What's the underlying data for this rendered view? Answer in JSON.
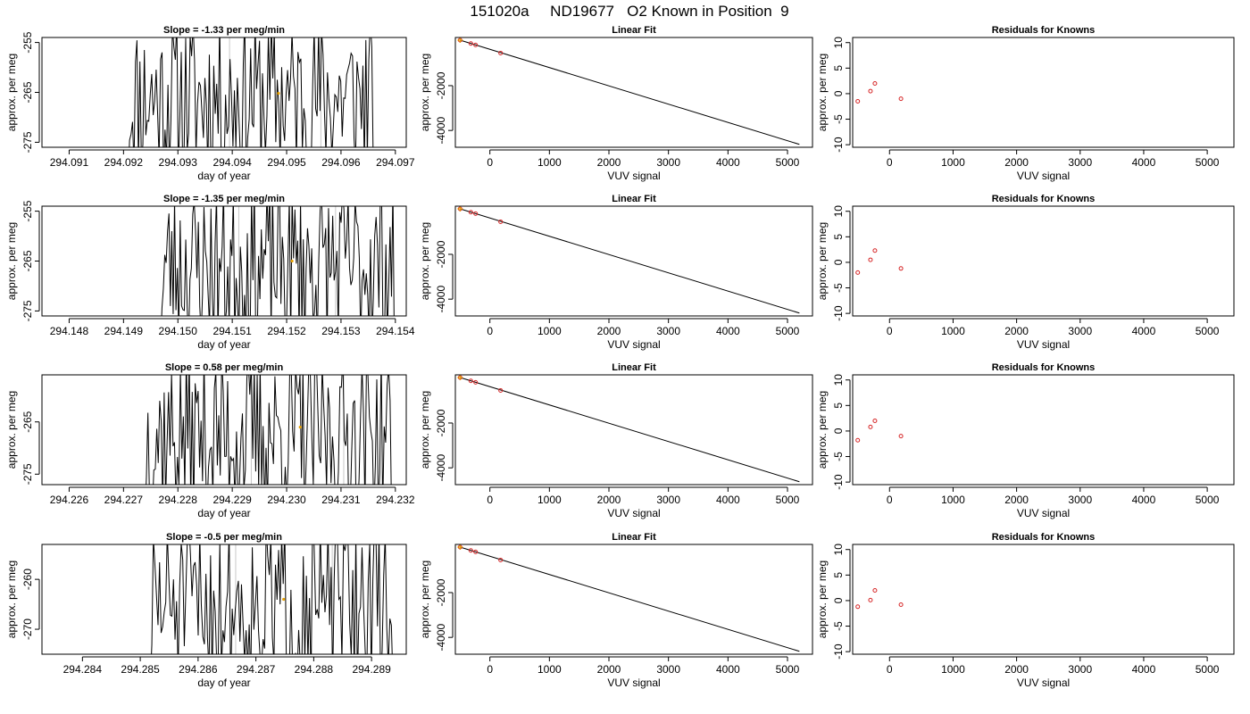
{
  "figure_title": "151020a     ND19677   O2 Known in Position  9",
  "chart_data": [
    {
      "panel": "timeseries",
      "row": 1,
      "type": "line",
      "title": "Slope =  -1.33  per meg/min",
      "xlabel": "day of year",
      "ylabel": "approx. per meg",
      "xlim": [
        294.0905,
        294.0972
      ],
      "ylim": [
        -276,
        -254
      ],
      "xticks": [
        "294.091",
        "294.092",
        "294.093",
        "294.094",
        "294.095",
        "294.096",
        "294.097"
      ],
      "xtick_values": [
        294.091,
        294.092,
        294.093,
        294.094,
        294.095,
        294.096,
        294.097
      ],
      "yticks": [
        "-255",
        "-265",
        "-275"
      ],
      "ytick_values": [
        -255,
        -265,
        -275
      ],
      "grid": false,
      "x_start": 294.09203,
      "x_end": 294.09662,
      "n_points": 170,
      "seed": 11,
      "vlines": [
        294.09395,
        294.09563
      ],
      "marker": {
        "x": 294.09485,
        "y": -265.2,
        "color": "#e69f00"
      }
    },
    {
      "panel": "fit",
      "row": 1,
      "type": "scatter",
      "title": "Linear Fit",
      "xlabel": "VUV signal",
      "ylabel": "approx. per meg",
      "xlim": [
        -580,
        5420
      ],
      "ylim": [
        -4750,
        150
      ],
      "xticks": [
        "0",
        "1000",
        "2000",
        "3000",
        "4000",
        "5000"
      ],
      "xtick_values": [
        0,
        1000,
        2000,
        3000,
        4000,
        5000
      ],
      "yticks": [
        "-2000",
        "-4000"
      ],
      "ytick_values": [
        -2000,
        -4000
      ],
      "grid": false,
      "fit_line": {
        "x": [
          -500,
          5200
        ],
        "y": [
          30,
          -4620
        ]
      },
      "points": {
        "x": [
          -500,
          -320,
          -240,
          180
        ],
        "y": [
          30,
          -120,
          -185,
          -545
        ]
      },
      "highlight": {
        "x": -500,
        "y": 30,
        "color": "#e69f00"
      },
      "point_color": "#d62728"
    },
    {
      "panel": "residuals",
      "row": 1,
      "type": "scatter",
      "title": "Residuals for Knowns",
      "xlabel": "VUV signal",
      "ylabel": "approx. per meg",
      "xlim": [
        -580,
        5420
      ],
      "ylim": [
        -10.5,
        11
      ],
      "xticks": [
        "0",
        "1000",
        "2000",
        "3000",
        "4000",
        "5000"
      ],
      "xtick_values": [
        0,
        1000,
        2000,
        3000,
        4000,
        5000
      ],
      "yticks": [
        "-10",
        "-5",
        "0",
        "5",
        "10"
      ],
      "ytick_values": [
        -10,
        -5,
        0,
        5,
        10
      ],
      "grid": false,
      "points": {
        "x": [
          -500,
          -300,
          -230,
          180
        ],
        "y": [
          -1.5,
          0.5,
          2.0,
          -1.0
        ]
      },
      "point_color": "#d62728"
    },
    {
      "panel": "timeseries",
      "row": 2,
      "type": "line",
      "title": "Slope =  -1.35  per meg/min",
      "xlabel": "day of year",
      "ylabel": "approx. per meg",
      "xlim": [
        294.1475,
        294.1542
      ],
      "ylim": [
        -276,
        -254
      ],
      "xticks": [
        "294.148",
        "294.149",
        "294.150",
        "294.151",
        "294.152",
        "294.153",
        "294.154"
      ],
      "xtick_values": [
        294.148,
        294.149,
        294.15,
        294.151,
        294.152,
        294.153,
        294.154
      ],
      "yticks": [
        "-255",
        "-265",
        "-275"
      ],
      "ytick_values": [
        -255,
        -265,
        -275
      ],
      "grid": false,
      "x_start": 294.14963,
      "x_end": 294.15398,
      "n_points": 170,
      "seed": 23,
      "vlines": [
        294.15112,
        294.1529
      ],
      "marker": {
        "x": 294.1521,
        "y": -265.0,
        "color": "#e69f00"
      }
    },
    {
      "panel": "fit",
      "row": 2,
      "type": "scatter",
      "title": "Linear Fit",
      "xlabel": "VUV signal",
      "ylabel": "approx. per meg",
      "xlim": [
        -580,
        5420
      ],
      "ylim": [
        -4750,
        150
      ],
      "xticks": [
        "0",
        "1000",
        "2000",
        "3000",
        "4000",
        "5000"
      ],
      "xtick_values": [
        0,
        1000,
        2000,
        3000,
        4000,
        5000
      ],
      "yticks": [
        "-2000",
        "-4000"
      ],
      "ytick_values": [
        -2000,
        -4000
      ],
      "grid": false,
      "fit_line": {
        "x": [
          -500,
          5200
        ],
        "y": [
          30,
          -4620
        ]
      },
      "points": {
        "x": [
          -500,
          -320,
          -240,
          180
        ],
        "y": [
          30,
          -120,
          -185,
          -545
        ]
      },
      "highlight": {
        "x": -500,
        "y": 30,
        "color": "#e69f00"
      },
      "point_color": "#d62728"
    },
    {
      "panel": "residuals",
      "row": 2,
      "type": "scatter",
      "title": "Residuals for Knowns",
      "xlabel": "VUV signal",
      "ylabel": "approx. per meg",
      "xlim": [
        -580,
        5420
      ],
      "ylim": [
        -10.5,
        11
      ],
      "xticks": [
        "0",
        "1000",
        "2000",
        "3000",
        "4000",
        "5000"
      ],
      "xtick_values": [
        0,
        1000,
        2000,
        3000,
        4000,
        5000
      ],
      "yticks": [
        "-10",
        "-5",
        "0",
        "5",
        "10"
      ],
      "ytick_values": [
        -10,
        -5,
        0,
        5,
        10
      ],
      "grid": false,
      "points": {
        "x": [
          -500,
          -300,
          -230,
          180
        ],
        "y": [
          -2.0,
          0.5,
          2.3,
          -1.2
        ]
      },
      "point_color": "#d62728"
    },
    {
      "panel": "timeseries",
      "row": 3,
      "type": "line",
      "title": "Slope =  0.58  per meg/min",
      "xlabel": "day of year",
      "ylabel": "approx. per meg",
      "xlim": [
        294.2255,
        294.2322
      ],
      "ylim": [
        -277,
        -256
      ],
      "xticks": [
        "294.226",
        "294.227",
        "294.228",
        "294.229",
        "294.230",
        "294.231",
        "294.232"
      ],
      "xtick_values": [
        294.226,
        294.227,
        294.228,
        294.229,
        294.23,
        294.231,
        294.232
      ],
      "yticks": [
        "-265",
        "-275"
      ],
      "ytick_values": [
        -265,
        -275
      ],
      "grid": false,
      "x_start": 294.22734,
      "x_end": 294.23193,
      "n_points": 170,
      "seed": 37,
      "vlines": [
        294.22935,
        294.23105
      ],
      "marker": {
        "x": 294.23025,
        "y": -266.0,
        "color": "#e69f00"
      }
    },
    {
      "panel": "fit",
      "row": 3,
      "type": "scatter",
      "title": "Linear Fit",
      "xlabel": "VUV signal",
      "ylabel": "approx. per meg",
      "xlim": [
        -580,
        5420
      ],
      "ylim": [
        -4750,
        150
      ],
      "xticks": [
        "0",
        "1000",
        "2000",
        "3000",
        "4000",
        "5000"
      ],
      "xtick_values": [
        0,
        1000,
        2000,
        3000,
        4000,
        5000
      ],
      "yticks": [
        "-2000",
        "-4000"
      ],
      "ytick_values": [
        -2000,
        -4000
      ],
      "grid": false,
      "fit_line": {
        "x": [
          -500,
          5200
        ],
        "y": [
          30,
          -4620
        ]
      },
      "points": {
        "x": [
          -500,
          -320,
          -240,
          180
        ],
        "y": [
          30,
          -120,
          -185,
          -545
        ]
      },
      "highlight": {
        "x": -500,
        "y": 30,
        "color": "#e69f00"
      },
      "point_color": "#d62728"
    },
    {
      "panel": "residuals",
      "row": 3,
      "type": "scatter",
      "title": "Residuals for Knowns",
      "xlabel": "VUV signal",
      "ylabel": "approx. per meg",
      "xlim": [
        -580,
        5420
      ],
      "ylim": [
        -10.5,
        11
      ],
      "xticks": [
        "0",
        "1000",
        "2000",
        "3000",
        "4000",
        "5000"
      ],
      "xtick_values": [
        0,
        1000,
        2000,
        3000,
        4000,
        5000
      ],
      "yticks": [
        "-10",
        "-5",
        "0",
        "5",
        "10"
      ],
      "ytick_values": [
        -10,
        -5,
        0,
        5,
        10
      ],
      "grid": false,
      "points": {
        "x": [
          -500,
          -300,
          -230,
          180
        ],
        "y": [
          -1.8,
          0.8,
          2.0,
          -1.0
        ]
      },
      "point_color": "#d62728"
    },
    {
      "panel": "timeseries",
      "row": 4,
      "type": "line",
      "title": "Slope =  -0.5  per meg/min",
      "xlabel": "day of year",
      "ylabel": "approx. per meg",
      "xlim": [
        294.2833,
        294.2896
      ],
      "ylim": [
        -275,
        -253
      ],
      "xticks": [
        "294.284",
        "294.285",
        "294.286",
        "294.287",
        "294.288",
        "294.289"
      ],
      "xtick_values": [
        294.284,
        294.285,
        294.286,
        294.287,
        294.288,
        294.289
      ],
      "yticks": [
        "-260",
        "-270"
      ],
      "ytick_values": [
        -260,
        -270
      ],
      "grid": false,
      "x_start": 294.28512,
      "x_end": 294.28937,
      "n_points": 160,
      "seed": 51,
      "vlines": [
        294.28665,
        294.28832
      ],
      "marker": {
        "x": 294.28748,
        "y": -264.0,
        "color": "#e69f00"
      }
    },
    {
      "panel": "fit",
      "row": 4,
      "type": "scatter",
      "title": "Linear Fit",
      "xlabel": "VUV signal",
      "ylabel": "approx. per meg",
      "xlim": [
        -580,
        5420
      ],
      "ylim": [
        -4750,
        150
      ],
      "xticks": [
        "0",
        "1000",
        "2000",
        "3000",
        "4000",
        "5000"
      ],
      "xtick_values": [
        0,
        1000,
        2000,
        3000,
        4000,
        5000
      ],
      "yticks": [
        "-2000",
        "-4000"
      ],
      "ytick_values": [
        -2000,
        -4000
      ],
      "grid": false,
      "fit_line": {
        "x": [
          -500,
          5200
        ],
        "y": [
          30,
          -4620
        ]
      },
      "points": {
        "x": [
          -500,
          -320,
          -240,
          180
        ],
        "y": [
          30,
          -120,
          -185,
          -545
        ]
      },
      "highlight": {
        "x": -500,
        "y": 30,
        "color": "#e69f00"
      },
      "point_color": "#d62728"
    },
    {
      "panel": "residuals",
      "row": 4,
      "type": "scatter",
      "title": "Residuals for Knowns",
      "xlabel": "VUV signal",
      "ylabel": "approx. per meg",
      "xlim": [
        -580,
        5420
      ],
      "ylim": [
        -10.5,
        11
      ],
      "xticks": [
        "0",
        "1000",
        "2000",
        "3000",
        "4000",
        "5000"
      ],
      "xtick_values": [
        0,
        1000,
        2000,
        3000,
        4000,
        5000
      ],
      "yticks": [
        "-10",
        "-5",
        "0",
        "5",
        "10"
      ],
      "ytick_values": [
        -10,
        -5,
        0,
        5,
        10
      ],
      "grid": false,
      "points": {
        "x": [
          -500,
          -300,
          -230,
          180
        ],
        "y": [
          -1.2,
          0.1,
          2.0,
          -0.8
        ]
      },
      "point_color": "#d62728"
    }
  ]
}
